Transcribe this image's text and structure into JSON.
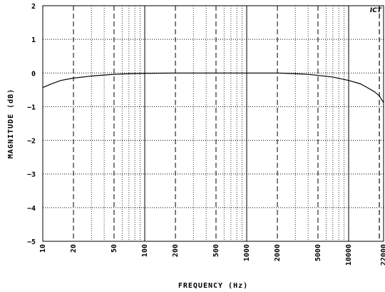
{
  "chart_data": {
    "type": "line",
    "xlabel": "FREQUENCY (Hz)",
    "ylabel": "MAGNITUDE (dB)",
    "logo_text": "ICT",
    "xscale": "log",
    "xlim": [
      10,
      22000
    ],
    "ylim": [
      -5,
      2
    ],
    "grid": true,
    "x_ticks": [
      10,
      20,
      50,
      100,
      200,
      500,
      1000,
      2000,
      5000,
      10000,
      22000
    ],
    "y_ticks": [
      2,
      1,
      0,
      -1,
      -2,
      -3,
      -4,
      -5
    ],
    "series": [
      {
        "x": [
          10,
          12,
          15,
          20,
          30,
          40,
          50,
          70,
          100,
          200,
          500,
          1000,
          2000,
          3000,
          4000,
          5000,
          7000,
          10000,
          13000,
          15000,
          18000,
          20000,
          22000
        ],
        "y": [
          -0.43,
          -0.33,
          -0.22,
          -0.15,
          -0.09,
          -0.06,
          -0.04,
          -0.02,
          -0.01,
          0,
          0,
          0,
          0,
          -0.02,
          -0.04,
          -0.07,
          -0.12,
          -0.22,
          -0.32,
          -0.42,
          -0.56,
          -0.68,
          -0.88
        ]
      }
    ]
  }
}
